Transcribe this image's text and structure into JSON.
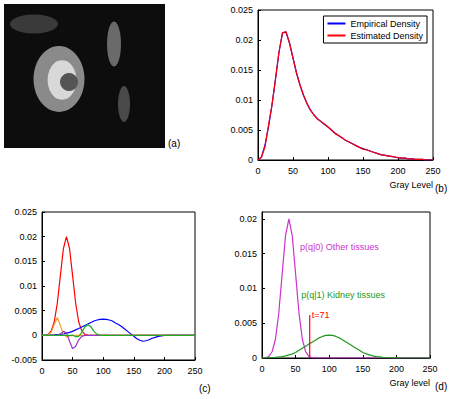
{
  "chart_data": [
    {
      "type": "image",
      "panel": "(a)"
    },
    {
      "type": "line",
      "panel": "(b)",
      "x_label": "Gray Level",
      "x": [
        0,
        5,
        10,
        15,
        20,
        25,
        30,
        35,
        40,
        45,
        50,
        55,
        60,
        65,
        70,
        75,
        80,
        85,
        90,
        95,
        100,
        105,
        110,
        115,
        120,
        125,
        130,
        135,
        140,
        145,
        150,
        155,
        160,
        165,
        170,
        175,
        180,
        185,
        190,
        195,
        200,
        205,
        210,
        215,
        220,
        225,
        230,
        235,
        240,
        245,
        250
      ],
      "series": [
        {
          "name": "Empirical Density",
          "color": "#0000ff",
          "values": [
            0,
            0.0005,
            0.0025,
            0.0055,
            0.0092,
            0.0135,
            0.018,
            0.0212,
            0.0213,
            0.0195,
            0.017,
            0.0145,
            0.0125,
            0.0108,
            0.0094,
            0.0083,
            0.0075,
            0.0069,
            0.0064,
            0.0059,
            0.0055,
            0.005,
            0.0045,
            0.0041,
            0.0037,
            0.0033,
            0.003,
            0.0027,
            0.0024,
            0.0021,
            0.0019,
            0.0017,
            0.0015,
            0.0013,
            0.0011,
            0.0009,
            0.0008,
            0.0007,
            0.0006,
            0.0005,
            0.0004,
            0.0003,
            0.0003,
            0.0002,
            0.0002,
            0.0001,
            0.0001,
            0.0001,
            0,
            0,
            0
          ]
        },
        {
          "name": "Estimated Density",
          "color": "#ff0000",
          "values": [
            0,
            0.0005,
            0.0022,
            0.0058,
            0.0092,
            0.0135,
            0.018,
            0.0212,
            0.0214,
            0.0195,
            0.017,
            0.0145,
            0.0125,
            0.0108,
            0.0094,
            0.0083,
            0.0075,
            0.0068,
            0.0064,
            0.006,
            0.0055,
            0.005,
            0.0044,
            0.0041,
            0.0037,
            0.0033,
            0.003,
            0.0027,
            0.0024,
            0.0021,
            0.0018,
            0.0017,
            0.0015,
            0.0013,
            0.0011,
            0.0009,
            0.0008,
            0.0007,
            0.0006,
            0.0005,
            0.0004,
            0.0003,
            0.0003,
            0.0002,
            0.0002,
            0.0001,
            0.0001,
            0.0001,
            0,
            0,
            0
          ]
        }
      ],
      "xlim": [
        0,
        250
      ],
      "ylim": [
        0,
        0.025
      ],
      "xticks": [
        0,
        50,
        100,
        150,
        200,
        250
      ],
      "yticks": [
        0,
        0.005,
        0.01,
        0.015,
        0.02,
        0.025
      ],
      "legend": "northeast",
      "grid": false
    },
    {
      "type": "line",
      "panel": "(c)",
      "x": [
        0,
        5,
        10,
        15,
        20,
        25,
        30,
        35,
        40,
        45,
        50,
        55,
        60,
        65,
        70,
        75,
        80,
        85,
        90,
        95,
        100,
        105,
        110,
        115,
        120,
        125,
        130,
        135,
        140,
        145,
        150,
        155,
        160,
        165,
        170,
        175,
        180,
        185,
        190,
        195,
        200,
        205,
        210,
        215,
        220,
        225,
        230,
        235,
        240,
        245,
        250
      ],
      "series": [
        {
          "color": "#ff0000",
          "values": [
            0,
            4e-05,
            0.0002,
            0.0009,
            0.0027,
            0.0065,
            0.0121,
            0.0176,
            0.02,
            0.0176,
            0.0121,
            0.0065,
            0.0027,
            0.0009,
            0.0002,
            4e-05,
            0,
            0,
            0,
            0,
            0,
            0,
            0,
            0,
            0,
            0,
            0,
            0,
            0,
            0,
            0,
            0,
            0,
            0,
            0,
            0,
            0,
            0,
            0,
            0,
            0,
            0,
            0,
            0,
            0,
            0,
            0,
            0,
            0,
            0,
            0
          ]
        },
        {
          "color": "#0000ff",
          "values": [
            1e-05,
            2e-05,
            4e-05,
            7e-05,
            0.0001,
            0.00015,
            0.0002,
            0.0003,
            0.00045,
            0.0006,
            0.0008,
            0.0011,
            0.0014,
            0.0017,
            0.002,
            0.0023,
            0.0026,
            0.0029,
            0.0031,
            0.00325,
            0.0033,
            0.00325,
            0.0031,
            0.0029,
            0.0025,
            0.0022,
            0.0018,
            0.0013,
            0.0008,
            0.0003,
            -0.0002,
            -0.0007,
            -0.001,
            -0.0012,
            -0.0011,
            -0.0009,
            -0.0006,
            -0.0004,
            -0.0002,
            -0.0001,
            0,
            0,
            0,
            0,
            0,
            0,
            0,
            0,
            0,
            0,
            0
          ]
        },
        {
          "color": "#f0a030",
          "values": [
            0,
            0,
            0.0001,
            0.0006,
            0.0022,
            0.0036,
            0.002,
            0.0003,
            -0.0003,
            -0.0001,
            0,
            0,
            0,
            0,
            0,
            0,
            0,
            0,
            0,
            0,
            0,
            0,
            0,
            0,
            0,
            0,
            0,
            0,
            0,
            0,
            0,
            0,
            0,
            0,
            0,
            0,
            0,
            0,
            0,
            0,
            0,
            0,
            0,
            0,
            0,
            0,
            0,
            0,
            0,
            0,
            0
          ]
        },
        {
          "color": "#9933cc",
          "values": [
            0,
            0,
            0,
            0,
            0,
            0,
            0.0003,
            0.0008,
            0.0005,
            -0.0012,
            -0.0027,
            -0.0022,
            -0.0009,
            -0.0002,
            0,
            0,
            0,
            0,
            0,
            0,
            0,
            0,
            0,
            0,
            0,
            0,
            0,
            0,
            0,
            0,
            0,
            0,
            0,
            0,
            0,
            0,
            0,
            0,
            0,
            0,
            0,
            0,
            0,
            0,
            0,
            0,
            0,
            0,
            0,
            0,
            0
          ]
        },
        {
          "color": "#22aa22",
          "values": [
            0,
            0,
            0,
            0,
            0,
            0,
            0,
            0,
            0,
            0,
            0,
            -0.0003,
            -0.0002,
            0.0006,
            0.0017,
            0.0022,
            0.0017,
            0.0008,
            0.0002,
            0,
            0,
            0,
            0,
            0,
            0,
            0,
            0,
            0,
            0,
            0,
            0,
            0,
            0,
            0,
            0,
            0,
            0,
            0,
            0,
            0,
            0,
            0,
            0,
            0,
            0,
            0,
            0,
            0,
            0,
            0,
            0
          ]
        }
      ],
      "xlim": [
        0,
        250
      ],
      "ylim": [
        -0.005,
        0.025
      ],
      "xticks": [
        0,
        50,
        100,
        150,
        200,
        250
      ],
      "yticks": [
        -0.005,
        0,
        0.005,
        0.01,
        0.015,
        0.02,
        0.025
      ],
      "grid": false
    },
    {
      "type": "line",
      "panel": "(d)",
      "x_label": "Gray level",
      "x": [
        0,
        5,
        10,
        15,
        20,
        25,
        30,
        35,
        40,
        45,
        50,
        55,
        60,
        65,
        70,
        75,
        80,
        85,
        90,
        95,
        100,
        105,
        110,
        115,
        120,
        125,
        130,
        135,
        140,
        145,
        150,
        155,
        160,
        165,
        170,
        175,
        180,
        185,
        190,
        195,
        200,
        205,
        210,
        215,
        220,
        225,
        230,
        235,
        240,
        245,
        250
      ],
      "series": [
        {
          "name": "p(q|0) Other tissues",
          "color": "#cc33cc",
          "values": [
            0,
            4e-05,
            0.0002,
            0.0009,
            0.0027,
            0.0065,
            0.0121,
            0.0176,
            0.02,
            0.0176,
            0.0121,
            0.0065,
            0.0027,
            0.0009,
            0.0002,
            4e-05,
            0,
            0,
            0,
            0,
            0,
            0,
            0,
            0,
            0,
            0,
            0,
            0,
            0,
            0,
            0,
            0,
            0,
            0,
            0,
            0,
            0,
            0,
            0,
            0,
            0,
            0,
            0,
            0,
            0,
            0,
            0,
            0,
            0,
            0,
            0
          ]
        },
        {
          "name": "p(q|1) Kidney tissues",
          "color": "#229922",
          "values": [
            1e-05,
            2e-05,
            4e-05,
            7e-05,
            0.0001,
            0.00015,
            0.0002,
            0.0003,
            0.00045,
            0.0006,
            0.0008,
            0.0011,
            0.0014,
            0.0017,
            0.002,
            0.0023,
            0.0026,
            0.0029,
            0.0031,
            0.00325,
            0.0033,
            0.00325,
            0.0031,
            0.0029,
            0.0026,
            0.0023,
            0.002,
            0.0017,
            0.0014,
            0.0011,
            0.0008,
            0.0006,
            0.00045,
            0.0003,
            0.0002,
            0.00015,
            0.0001,
            7e-05,
            4e-05,
            2e-05,
            1e-05,
            0,
            0,
            0,
            0,
            0,
            0,
            0,
            0,
            0,
            0
          ]
        }
      ],
      "threshold": {
        "x": 71,
        "y": 0.0062,
        "label": "t=71",
        "color": "#ff0000"
      },
      "xlim": [
        0,
        250
      ],
      "ylim": [
        0,
        0.021
      ],
      "xticks": [
        0,
        50,
        100,
        150,
        200,
        250
      ],
      "yticks": [
        0,
        0.005,
        0.01,
        0.015,
        0.02
      ],
      "grid": false
    }
  ]
}
